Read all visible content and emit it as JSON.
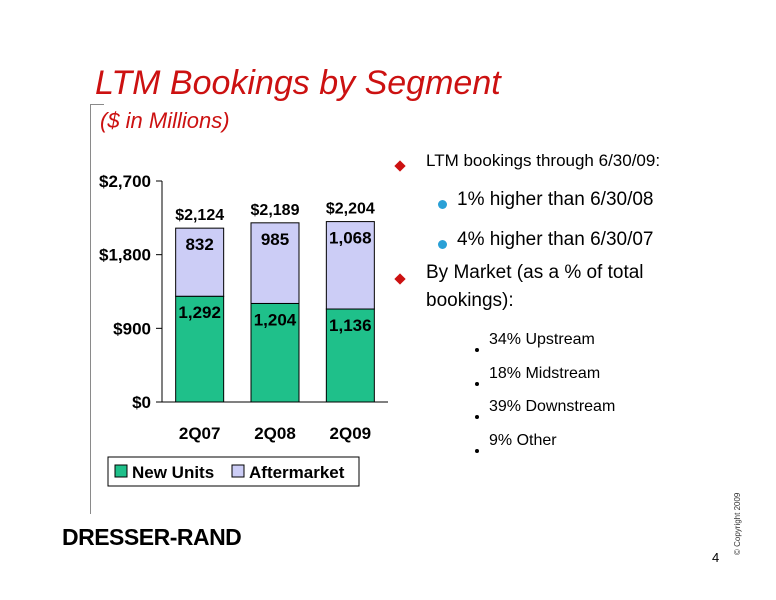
{
  "slide": {
    "title": "LTM Bookings by Segment",
    "subtitle": "($ in Millions)",
    "logo_text": "DRESSER-RAND",
    "copyright": "© Copyright 2009",
    "page_number": "4",
    "accent_color": "#cc1111",
    "bullet_color": "#2aa0d6"
  },
  "bullets": {
    "b1": "LTM bookings through 6/30/09:",
    "b1_sub": [
      "1% higher than 6/30/08",
      "4% higher than 6/30/07"
    ],
    "b2_line1": "By Market (as a % of total",
    "b2_line2": "bookings):",
    "b2_sub": [
      "34% Upstream",
      "18% Midstream",
      "39% Downstream",
      "9% Other"
    ]
  },
  "chart_data": {
    "type": "bar",
    "stacked": true,
    "categories": [
      "2Q07",
      "2Q08",
      "2Q09"
    ],
    "series": [
      {
        "name": "New Units",
        "values": [
          1292,
          1204,
          1136
        ],
        "labels": [
          "1,292",
          "1,204",
          "1,136"
        ],
        "color": "#1fc08a"
      },
      {
        "name": "Aftermarket",
        "values": [
          832,
          985,
          1068
        ],
        "labels": [
          "832",
          "985",
          "1,068"
        ],
        "color": "#cccdf6"
      }
    ],
    "totals": [
      2124,
      2189,
      2204
    ],
    "total_labels": [
      "$2,124",
      "$2,189",
      "$2,204"
    ],
    "ylim": [
      0,
      2700
    ],
    "yticks": [
      0,
      900,
      1800,
      2700
    ],
    "ytick_labels": [
      "$0",
      "$900",
      "$1,800",
      "$2,700"
    ],
    "legend": "bottom",
    "grid": false
  }
}
